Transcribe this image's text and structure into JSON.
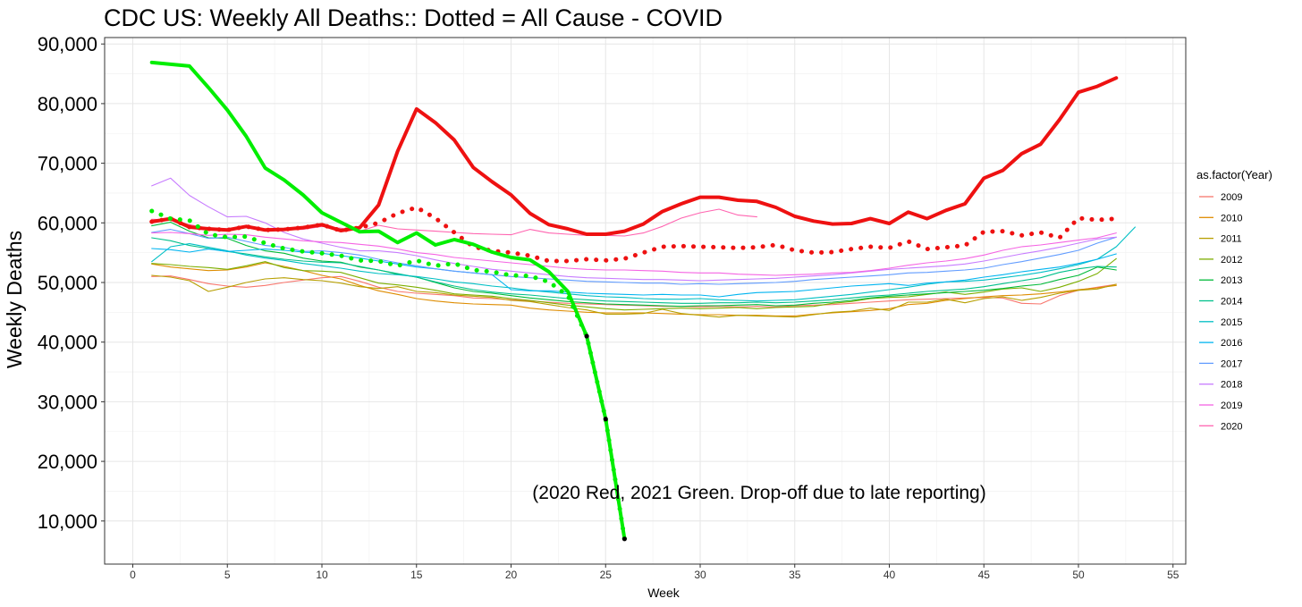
{
  "chart_data": {
    "type": "line",
    "title": "CDC US: Weekly All Deaths:: Dotted = All Cause - COVID",
    "xlabel": "Week",
    "ylabel": "Weekly Deaths",
    "xlim": [
      -1.5,
      55.5
    ],
    "ylim": [
      3200,
      91500
    ],
    "x_ticks": [
      0,
      5,
      10,
      15,
      20,
      25,
      30,
      35,
      40,
      45,
      50,
      55
    ],
    "y_ticks": [
      10000,
      20000,
      30000,
      40000,
      50000,
      60000,
      70000,
      80000,
      90000
    ],
    "x_tick_labels": [
      "0",
      "5",
      "10",
      "15",
      "20",
      "25",
      "30",
      "35",
      "40",
      "45",
      "50",
      "55"
    ],
    "y_tick_labels": [
      "10,000",
      "20,000",
      "30,000",
      "40,000",
      "50,000",
      "60,000",
      "70,000",
      "80,000",
      "90,000"
    ],
    "grid": true,
    "legend": {
      "title": "as.factor(Year)",
      "placement": "right",
      "entries": [
        "2009",
        "2010",
        "2011",
        "2012",
        "2013",
        "2014",
        "2015",
        "2016",
        "2017",
        "2018",
        "2019",
        "2020"
      ]
    },
    "annotation": "(2020 Red, 2021 Green. Drop-off due to late reporting)",
    "series": [
      {
        "name": "2009",
        "color": "#F8766D",
        "width": 1.1,
        "style": "solid",
        "x_start": 1,
        "values": [
          51000,
          51100,
          50500,
          49800,
          49400,
          49200,
          49500,
          50000,
          50400,
          50800,
          51000,
          50200,
          49200,
          48500,
          48200,
          48000,
          47800,
          47400,
          47300,
          47100,
          46900,
          46700,
          46500,
          46400,
          46300,
          46200,
          46100,
          46000,
          46000,
          45900,
          46000,
          45900,
          46000,
          45900,
          46100,
          46200,
          46300,
          46500,
          46700,
          46900,
          47100,
          47200,
          47300,
          47400,
          47500,
          47400,
          46500,
          46400,
          47800,
          48700,
          49200,
          49700
        ]
      },
      {
        "name": "2010",
        "color": "#DE8C00",
        "width": 1.1,
        "style": "solid",
        "x_start": 1,
        "values": [
          53100,
          52600,
          52300,
          52000,
          52100,
          52600,
          53300,
          52700,
          52000,
          51200,
          50600,
          49500,
          48600,
          48000,
          47300,
          46900,
          46600,
          46400,
          46300,
          46200,
          45700,
          45400,
          45200,
          45000,
          44900,
          44900,
          44900,
          44800,
          44700,
          44600,
          44600,
          44500,
          44500,
          44400,
          44400,
          44700,
          44900,
          45100,
          45300,
          45600,
          46300,
          46500,
          47000,
          47300,
          47600,
          47800,
          47900,
          48100,
          48400,
          48800,
          49100,
          49500
        ]
      },
      {
        "name": "2011",
        "color": "#B79F00",
        "width": 1.1,
        "style": "solid",
        "x_start": 1,
        "values": [
          51200,
          50900,
          50300,
          48500,
          49200,
          50000,
          50600,
          50800,
          50500,
          50300,
          49900,
          49300,
          49000,
          49300,
          48500,
          48300,
          47900,
          47700,
          47500,
          47000,
          46800,
          46300,
          45800,
          45400,
          44700,
          44700,
          44800,
          45500,
          44800,
          44500,
          44200,
          44500,
          44400,
          44300,
          44200,
          44600,
          45000,
          45200,
          45700,
          45300,
          46700,
          46700,
          47200,
          46600,
          47300,
          47600,
          47000,
          47500,
          48200,
          48700,
          48900,
          49700
        ]
      },
      {
        "name": "2012",
        "color": "#7CAE00",
        "width": 1.1,
        "style": "solid",
        "x_start": 1,
        "values": [
          53200,
          53000,
          52700,
          52500,
          52200,
          52800,
          53500,
          52500,
          52000,
          51900,
          51700,
          50800,
          49900,
          49600,
          49200,
          48700,
          48100,
          47900,
          47700,
          47300,
          47000,
          46600,
          46200,
          45900,
          45600,
          45400,
          45500,
          45600,
          45700,
          45600,
          45700,
          45800,
          45600,
          45800,
          45900,
          46000,
          46500,
          46800,
          47300,
          47500,
          47600,
          48000,
          48400,
          48000,
          48400,
          48900,
          49100,
          48500,
          49200,
          50200,
          51500,
          54000
        ]
      },
      {
        "name": "2013",
        "color": "#00BA38",
        "width": 1.1,
        "style": "solid",
        "x_start": 1,
        "values": [
          59500,
          60100,
          58600,
          57500,
          57400,
          56200,
          55300,
          54900,
          54100,
          53600,
          53400,
          52600,
          52100,
          51400,
          50900,
          50000,
          49100,
          48500,
          48200,
          47800,
          47400,
          47100,
          46800,
          46600,
          46400,
          46300,
          46200,
          46100,
          46000,
          46100,
          46100,
          46200,
          46300,
          46100,
          46200,
          46500,
          46700,
          47000,
          47400,
          47700,
          47900,
          48100,
          48300,
          48500,
          48700,
          49000,
          49400,
          49700,
          50500,
          51200,
          52600,
          52100
        ]
      },
      {
        "name": "2014",
        "color": "#00C08B",
        "width": 1.1,
        "style": "solid",
        "x_start": 1,
        "values": [
          57500,
          57000,
          56200,
          55700,
          55200,
          54800,
          54300,
          53900,
          53600,
          53400,
          53300,
          52700,
          52100,
          51500,
          50900,
          50100,
          49400,
          48800,
          48400,
          48100,
          47900,
          47600,
          47300,
          47100,
          46900,
          46800,
          46700,
          46600,
          46500,
          46500,
          46600,
          46600,
          46700,
          46600,
          46700,
          46900,
          47100,
          47400,
          47700,
          47900,
          48200,
          48500,
          48700,
          48900,
          49300,
          49800,
          50300,
          50800,
          51700,
          52300,
          52700,
          52600
        ]
      },
      {
        "name": "2015",
        "color": "#00BFC4",
        "width": 1.1,
        "style": "solid",
        "x_start": 1,
        "values": [
          53500,
          56000,
          56500,
          55900,
          55300,
          54600,
          54100,
          53700,
          53200,
          52800,
          52400,
          51900,
          51500,
          51300,
          51000,
          50600,
          50100,
          49800,
          49400,
          49100,
          48700,
          48400,
          48100,
          47800,
          47600,
          47500,
          47300,
          47200,
          47200,
          47300,
          47100,
          47000,
          46900,
          47000,
          47100,
          47400,
          47700,
          48000,
          48400,
          48800,
          49200,
          49700,
          50100,
          50200,
          50400,
          50800,
          51200,
          51700,
          52300,
          53000,
          53900,
          56000,
          59300
        ]
      },
      {
        "name": "2016",
        "color": "#00B4F0",
        "width": 1.1,
        "style": "solid",
        "x_start": 1,
        "values": [
          55700,
          55500,
          55100,
          55600,
          55200,
          55400,
          55600,
          55400,
          55100,
          54900,
          54500,
          54100,
          53600,
          53100,
          52600,
          52300,
          51900,
          51600,
          51300,
          48800,
          48600,
          48600,
          48400,
          48200,
          48100,
          48000,
          47900,
          48000,
          47900,
          47900,
          47600,
          48000,
          48300,
          48400,
          48500,
          48800,
          49100,
          49400,
          49600,
          49800,
          49500,
          49900,
          50100,
          50400,
          50900,
          51300,
          51800,
          52200,
          52600,
          53200,
          53900,
          54800
        ]
      },
      {
        "name": "2017",
        "color": "#619CFF",
        "width": 1.1,
        "style": "solid",
        "x_start": 1,
        "values": [
          58400,
          58900,
          58200,
          57400,
          57600,
          56900,
          56200,
          55900,
          55200,
          55300,
          55000,
          54600,
          53900,
          53300,
          52800,
          52300,
          51900,
          51600,
          51300,
          51000,
          50800,
          50600,
          50400,
          50200,
          50100,
          50000,
          49900,
          49900,
          49700,
          49800,
          49700,
          49800,
          49900,
          50000,
          50200,
          50500,
          50700,
          50900,
          51100,
          51300,
          51600,
          51700,
          51900,
          52100,
          52400,
          53000,
          53500,
          54100,
          54700,
          55400,
          56600,
          57600
        ]
      },
      {
        "name": "2018",
        "color": "#C77CFF",
        "width": 1.1,
        "style": "solid",
        "x_start": 1,
        "values": [
          66200,
          67500,
          64600,
          62700,
          61000,
          61100,
          60000,
          58400,
          57300,
          56600,
          55900,
          55300,
          55300,
          55000,
          54500,
          53800,
          53200,
          52700,
          52200,
          51900,
          51600,
          51300,
          51000,
          50800,
          50700,
          50600,
          50500,
          50500,
          50400,
          50300,
          50400,
          50500,
          50600,
          50700,
          50900,
          51100,
          51300,
          51600,
          51900,
          52200,
          52400,
          52600,
          52800,
          53100,
          53600,
          54200,
          54800,
          55300,
          55900,
          56600,
          57300,
          57600
        ]
      },
      {
        "name": "2019",
        "color": "#F564E3",
        "width": 1.1,
        "style": "solid",
        "x_start": 1,
        "values": [
          58300,
          58400,
          58200,
          57900,
          58100,
          58000,
          57600,
          57300,
          57000,
          56800,
          56700,
          56400,
          56100,
          55600,
          55000,
          54700,
          54200,
          53900,
          53600,
          53300,
          53000,
          52700,
          52400,
          52200,
          52100,
          52100,
          52000,
          51900,
          51700,
          51600,
          51600,
          51400,
          51300,
          51200,
          51300,
          51400,
          51600,
          51700,
          52000,
          52400,
          52900,
          53300,
          53600,
          54000,
          54600,
          55400,
          56000,
          56300,
          56700,
          57100,
          57500,
          58300
        ]
      },
      {
        "name": "2020",
        "color": "#FF64B0",
        "width": 1.1,
        "style": "solid",
        "x_start": 1,
        "values": [
          60600,
          60500,
          59700,
          59100,
          59000,
          59200,
          58700,
          58800,
          58900,
          59400,
          59100,
          58600,
          59600,
          59000,
          58800,
          58600,
          58400,
          58200,
          58100,
          58000,
          58900,
          58300,
          58100,
          57900,
          57900,
          57800,
          58300,
          59400,
          60800,
          61700,
          62300,
          61300,
          61000
        ]
      },
      {
        "name": "2020 total",
        "color": "#EE1111",
        "width": 4,
        "style": "solid",
        "x_start": 1,
        "values": [
          60200,
          60700,
          59300,
          59000,
          58800,
          59400,
          58800,
          58900,
          59200,
          59700,
          58700,
          59200,
          63000,
          72000,
          79100,
          76800,
          73900,
          69300,
          66900,
          64700,
          61600,
          59700,
          59000,
          58100,
          58100,
          58600,
          59800,
          61900,
          63200,
          64300,
          64300,
          63800,
          63600,
          62600,
          61100,
          60300,
          59800,
          59900,
          60700,
          59900,
          61800,
          60700,
          62100,
          63200,
          67500,
          68800,
          71600,
          73200,
          77300,
          81900,
          82900,
          84300
        ]
      },
      {
        "name": "2020 excl. COVID",
        "color": "#EE1111",
        "width": 4,
        "style": "dotted",
        "x_start": 1,
        "values": [
          60200,
          60700,
          59300,
          59000,
          58800,
          59400,
          58800,
          58900,
          59200,
          59700,
          58700,
          59200,
          60000,
          61600,
          62600,
          60800,
          58400,
          56000,
          55300,
          55000,
          54500,
          53600,
          53600,
          53900,
          53700,
          54000,
          55000,
          56000,
          56100,
          56000,
          55900,
          55800,
          55900,
          56300,
          55400,
          55000,
          55100,
          55600,
          56000,
          55800,
          56900,
          55600,
          55900,
          56200,
          58500,
          58600,
          57900,
          58400,
          57500,
          60800,
          60500,
          60700
        ]
      },
      {
        "name": "2021 total",
        "color": "#00EE00",
        "width": 4,
        "style": "solid",
        "x_start": 1,
        "values": [
          86900,
          86600,
          86300,
          82700,
          78900,
          74500,
          69200,
          67200,
          64700,
          61700,
          60100,
          58500,
          58600,
          56700,
          58300,
          56300,
          57200,
          56400,
          55100,
          54200,
          53800,
          51800,
          48500,
          41000,
          27100,
          7000
        ]
      },
      {
        "name": "2021 excl. COVID",
        "color": "#00EE00",
        "width": 4,
        "style": "dotted",
        "x_start": 1,
        "values": [
          62000,
          60700,
          60400,
          58100,
          57600,
          57700,
          56600,
          55700,
          55200,
          54900,
          54500,
          53700,
          53600,
          52800,
          53700,
          52800,
          53200,
          52100,
          51800,
          51200,
          51100,
          50100,
          47800,
          41000,
          27100,
          7000
        ]
      }
    ],
    "endpoint_markers": [
      {
        "series": "2021 total",
        "x": [
          24,
          25,
          26
        ]
      }
    ]
  }
}
